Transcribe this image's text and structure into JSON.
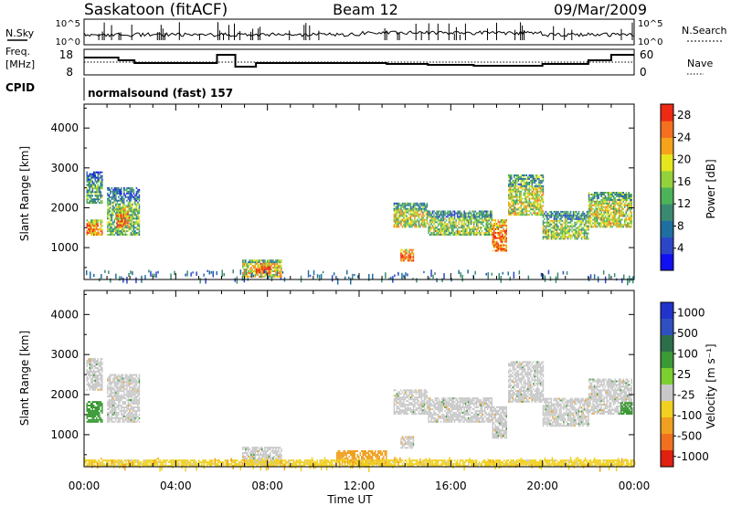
{
  "header": {
    "station": "Saskatoon (fitACF)",
    "beam": "Beam 12",
    "date": "09/Mar/2009"
  },
  "param_panels": {
    "nsky_label": "N.Sky",
    "nsky_ticks": [
      "10^5",
      "10^0"
    ],
    "nsearch_label": "N.Search",
    "nsearch_ticks": [
      "10^5",
      "10^0"
    ],
    "freq_label_line1": "Freq.",
    "freq_label_line2": "[MHz]",
    "freq_ticks": [
      "18",
      "8"
    ],
    "nave_label": "Nave",
    "nave_ticks": [
      "60",
      "0"
    ],
    "cpid_label": "CPID",
    "cpid_value": "normalsound (fast) 157"
  },
  "colors": {
    "power_scale": [
      "#1010f0",
      "#2d46c8",
      "#1f6fa0",
      "#3a8a72",
      "#4db35a",
      "#94d23c",
      "#e6e61e",
      "#f5a31a",
      "#f47020",
      "#ef2a14"
    ],
    "velocity_scale": [
      "#2233cc",
      "#3050c0",
      "#2d6e4a",
      "#3a9a35",
      "#7ccf30",
      "#c8c8c8",
      "#f0d020",
      "#f0a020",
      "#f07020",
      "#e02010"
    ],
    "ground_scatter": "#c8c8c8"
  },
  "chart_data": [
    {
      "type": "heatmap",
      "panel": "power",
      "ylabel": "Slant Range [km]",
      "yticks": [
        1000,
        2000,
        3000,
        4000
      ],
      "ylim": [
        200,
        4600
      ],
      "xlim": [
        0,
        24
      ],
      "colorbar": {
        "label": "Power [dB]",
        "ticks": [
          "28",
          "24",
          "20",
          "16",
          "12",
          "8",
          "4"
        ],
        "range": [
          0,
          30
        ]
      },
      "regions": [
        {
          "t0": 0.1,
          "t1": 0.8,
          "r0": 1300,
          "r1": 1700,
          "v": 24
        },
        {
          "t0": 0.1,
          "t1": 0.8,
          "r0": 2100,
          "r1": 2900,
          "v": 12
        },
        {
          "t0": 1.0,
          "t1": 2.4,
          "r0": 1300,
          "r1": 2500,
          "v": 14
        },
        {
          "t0": 1.4,
          "t1": 2.0,
          "r0": 1500,
          "r1": 2000,
          "v": 24
        },
        {
          "t0": 6.9,
          "t1": 8.6,
          "r0": 250,
          "r1": 700,
          "v": 20
        },
        {
          "t0": 7.5,
          "t1": 8.1,
          "r0": 350,
          "r1": 600,
          "v": 27
        },
        {
          "t0": 13.5,
          "t1": 15.0,
          "r0": 1500,
          "r1": 2100,
          "v": 18
        },
        {
          "t0": 13.8,
          "t1": 14.4,
          "r0": 650,
          "r1": 950,
          "v": 26
        },
        {
          "t0": 15.0,
          "t1": 17.8,
          "r0": 1300,
          "r1": 1900,
          "v": 16
        },
        {
          "t0": 17.8,
          "t1": 18.4,
          "r0": 900,
          "r1": 1700,
          "v": 26
        },
        {
          "t0": 18.5,
          "t1": 20.0,
          "r0": 1800,
          "r1": 2800,
          "v": 18
        },
        {
          "t0": 20.0,
          "t1": 22.0,
          "r0": 1200,
          "r1": 1900,
          "v": 16
        },
        {
          "t0": 22.0,
          "t1": 23.9,
          "r0": 1500,
          "r1": 2400,
          "v": 18
        }
      ]
    },
    {
      "type": "heatmap",
      "panel": "velocity",
      "xlabel": "Time UT",
      "xticks": [
        "00:00",
        "04:00",
        "08:00",
        "12:00",
        "16:00",
        "20:00",
        "00:00"
      ],
      "xlim": [
        0,
        24
      ],
      "ylabel": "Slant Range [km]",
      "yticks": [
        1000,
        2000,
        3000,
        4000
      ],
      "ylim": [
        200,
        4600
      ],
      "colorbar": {
        "label": "Velocity [m s⁻¹]",
        "ticks": [
          "1000",
          "500",
          "100",
          "25",
          "-25",
          "-100",
          "-500",
          "-1000"
        ],
        "range": [
          -1000,
          1000
        ]
      },
      "regions": [
        {
          "t0": 0.1,
          "t1": 0.8,
          "r0": 1300,
          "r1": 1800,
          "v": 150
        },
        {
          "t0": 0.1,
          "t1": 0.8,
          "r0": 2100,
          "r1": 2900,
          "v": 0
        },
        {
          "t0": 1.0,
          "t1": 2.4,
          "r0": 1300,
          "r1": 2500,
          "v": 0
        },
        {
          "t0": 6.9,
          "t1": 8.6,
          "r0": 250,
          "r1": 700,
          "v": 0
        },
        {
          "t0": 13.5,
          "t1": 15.0,
          "r0": 1500,
          "r1": 2100,
          "v": 0
        },
        {
          "t0": 13.8,
          "t1": 14.4,
          "r0": 650,
          "r1": 950,
          "v": 0
        },
        {
          "t0": 15.0,
          "t1": 17.8,
          "r0": 1300,
          "r1": 1900,
          "v": 0
        },
        {
          "t0": 17.8,
          "t1": 18.4,
          "r0": 900,
          "r1": 1700,
          "v": 0
        },
        {
          "t0": 18.5,
          "t1": 20.0,
          "r0": 1800,
          "r1": 2800,
          "v": 0
        },
        {
          "t0": 20.0,
          "t1": 22.0,
          "r0": 1200,
          "r1": 1900,
          "v": 0
        },
        {
          "t0": 22.0,
          "t1": 23.9,
          "r0": 1500,
          "r1": 2400,
          "v": 0
        },
        {
          "t0": 23.4,
          "t1": 23.9,
          "r0": 1500,
          "r1": 1800,
          "v": 150
        },
        {
          "t0": 11.0,
          "t1": 13.2,
          "r0": 250,
          "r1": 600,
          "v": -200
        },
        {
          "t0": 0.0,
          "t1": 24.0,
          "r0": 200,
          "r1": 380,
          "v": -50
        }
      ]
    }
  ]
}
